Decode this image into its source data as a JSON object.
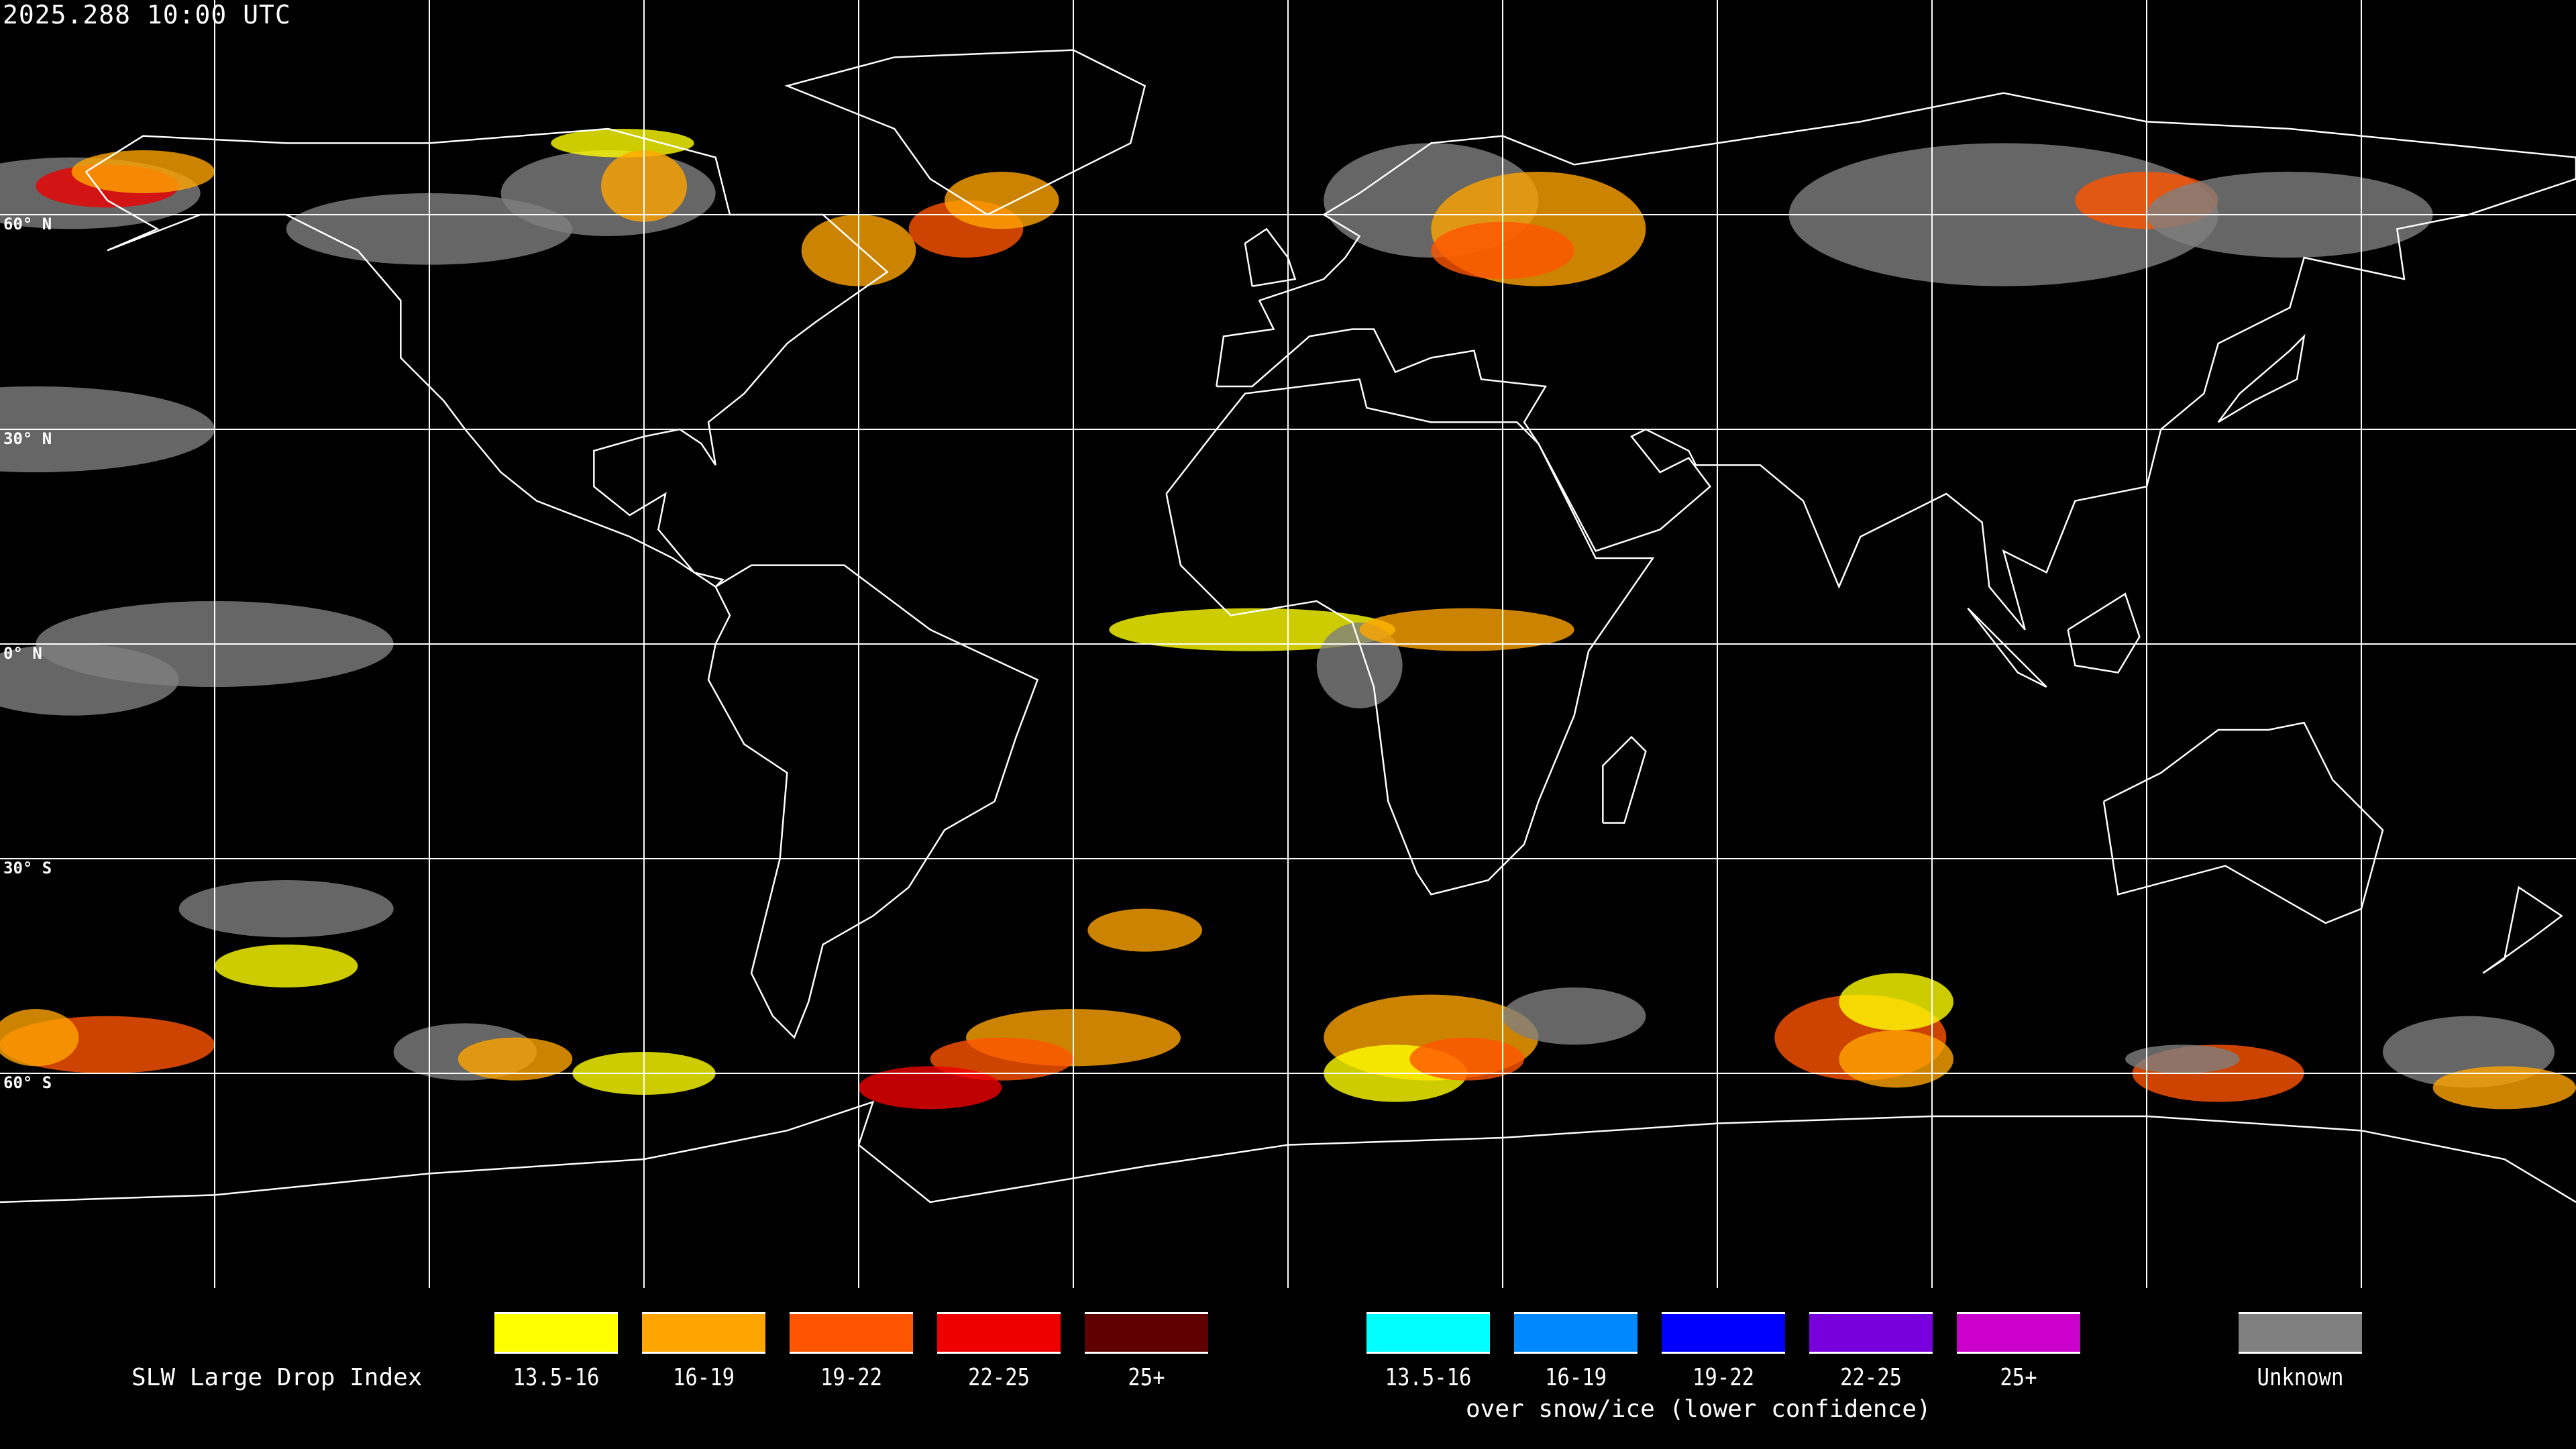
{
  "timestamp": "2025.288 10:00 UTC",
  "lat_labels": [
    "60° N",
    "30° N",
    "0° N",
    "30° S",
    "60° S"
  ],
  "legend": {
    "title": "SLW Large Drop Index",
    "standard": [
      {
        "label": "13.5-16",
        "color": "#ffff00"
      },
      {
        "label": "16-19",
        "color": "#ffa500"
      },
      {
        "label": "19-22",
        "color": "#ff5500"
      },
      {
        "label": "22-25",
        "color": "#ee0000"
      },
      {
        "label": "25+",
        "color": "#600000"
      }
    ],
    "snow_ice": [
      {
        "label": "13.5-16",
        "color": "#00ffff"
      },
      {
        "label": "16-19",
        "color": "#0088ff"
      },
      {
        "label": "19-22",
        "color": "#0000ff"
      },
      {
        "label": "22-25",
        "color": "#7700dd"
      },
      {
        "label": "25+",
        "color": "#cc00cc"
      }
    ],
    "snow_ice_caption": "over snow/ice (lower confidence)",
    "unknown": {
      "label": "Unknown",
      "color": "#808080"
    }
  }
}
